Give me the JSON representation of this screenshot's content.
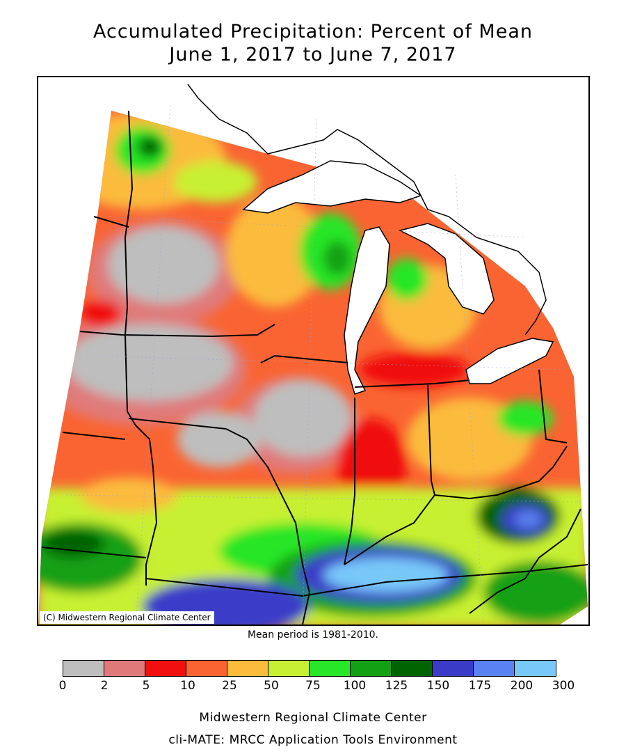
{
  "title": {
    "line1": "Accumulated Precipitation: Percent of Mean",
    "line2": "June 1, 2017 to June 7, 2017"
  },
  "map": {
    "credit": "(C) Midwestern Regional Climate Center",
    "mean_period": "Mean period is 1981-2010.",
    "colors": {
      "gray": "#bebebe",
      "pink": "#e07a7a",
      "red": "#f01010",
      "orange_red": "#fa6432",
      "orange": "#fbbb3c",
      "yellow_green": "#c8f032",
      "green": "#28e628",
      "mid_green": "#14a014",
      "dark_green": "#006400",
      "dark_blue": "#3a3cc8",
      "blue": "#5a82f0",
      "light_blue": "#78c8fa",
      "lake": "#ffffff",
      "border": "#000000"
    }
  },
  "legend": {
    "bins": [
      {
        "from": "0",
        "to": "2",
        "color": "#bebebe"
      },
      {
        "from": "2",
        "to": "5",
        "color": "#e07a7a"
      },
      {
        "from": "5",
        "to": "10",
        "color": "#f01010"
      },
      {
        "from": "10",
        "to": "25",
        "color": "#fa6432"
      },
      {
        "from": "25",
        "to": "50",
        "color": "#fbbb3c"
      },
      {
        "from": "50",
        "to": "75",
        "color": "#c8f032"
      },
      {
        "from": "75",
        "to": "100",
        "color": "#28e628"
      },
      {
        "from": "100",
        "to": "125",
        "color": "#14a014"
      },
      {
        "from": "125",
        "to": "150",
        "color": "#006400"
      },
      {
        "from": "150",
        "to": "175",
        "color": "#3a3cc8"
      },
      {
        "from": "175",
        "to": "200",
        "color": "#5a82f0"
      },
      {
        "from": "200",
        "to": "300",
        "color": "#78c8fa"
      }
    ],
    "ticks": [
      "0",
      "2",
      "5",
      "10",
      "25",
      "50",
      "75",
      "100",
      "125",
      "150",
      "175",
      "200",
      "300"
    ]
  },
  "footer": {
    "line1": "Midwestern Regional Climate Center",
    "line2": "cli-MATE: MRCC Application Tools Environment"
  }
}
